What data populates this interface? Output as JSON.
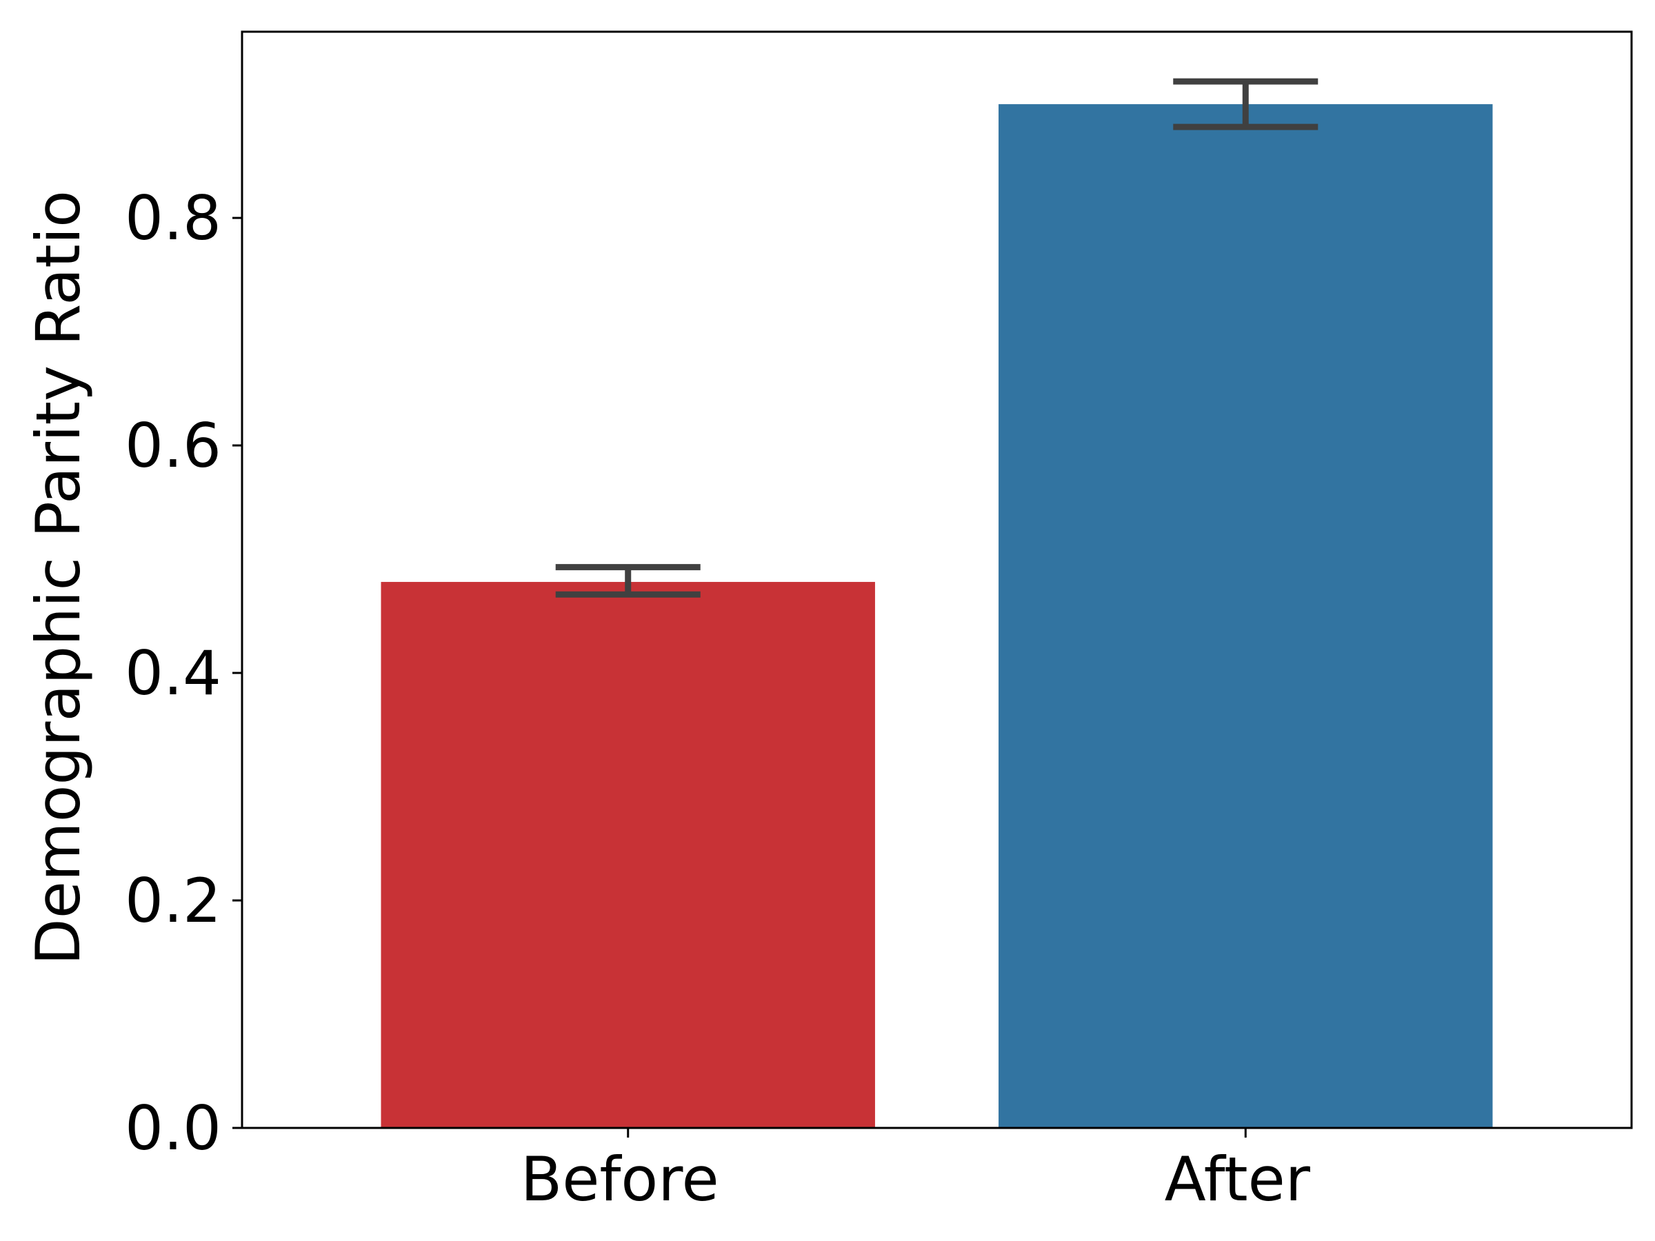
{
  "chart_data": {
    "type": "bar",
    "title": "",
    "xlabel": "",
    "ylabel": "Demographic Parity Ratio",
    "categories": [
      "Before",
      "After"
    ],
    "values": [
      0.48,
      0.9
    ],
    "error_bars": [
      [
        0.469,
        0.493
      ],
      [
        0.88,
        0.92
      ]
    ],
    "colors": [
      "#c83236",
      "#3274a1"
    ],
    "error_bar_color": "#404040",
    "ylim": [
      0,
      0.9637
    ],
    "yticks": [
      0.0,
      0.2,
      0.4,
      0.6,
      0.8
    ],
    "ytick_labels": [
      "0.0",
      "0.2",
      "0.4",
      "0.6",
      "0.8"
    ],
    "grid": false,
    "legend": "none"
  }
}
